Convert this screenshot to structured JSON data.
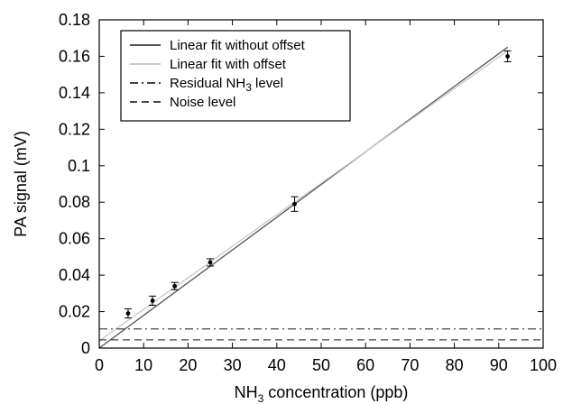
{
  "chart_data": {
    "type": "scatter",
    "xlabel": {
      "prefix": "NH",
      "sub": "3",
      "suffix": " concentration (ppb)"
    },
    "ylabel": "PA signal (mV)",
    "xlim": [
      0,
      100
    ],
    "ylim": [
      0,
      0.18
    ],
    "x_ticks": [
      0,
      10,
      20,
      30,
      40,
      50,
      60,
      70,
      80,
      90,
      100
    ],
    "y_ticks": [
      0,
      0.02,
      0.04,
      0.06,
      0.08,
      0.1,
      0.12,
      0.14,
      0.16,
      0.18
    ],
    "y_tick_labels": [
      "0",
      "0.02",
      "0.04",
      "0.06",
      "0.08",
      "0.1",
      "0.12",
      "0.14",
      "0.16",
      "0.18"
    ],
    "grid": false,
    "legend_position": "top-left",
    "points": {
      "x": [
        6.5,
        12,
        17,
        25,
        44,
        92
      ],
      "y": [
        0.019,
        0.026,
        0.034,
        0.047,
        0.079,
        0.16
      ],
      "yerr": [
        0.0025,
        0.0025,
        0.002,
        0.002,
        0.004,
        0.003
      ]
    },
    "series": [
      {
        "name": "Linear fit without offset",
        "kind": "line",
        "x": [
          0,
          92
        ],
        "y": [
          0,
          0.165
        ],
        "color": "#555555",
        "style": "solid"
      },
      {
        "name": "Linear fit with offset",
        "kind": "line",
        "x": [
          0,
          92
        ],
        "y": [
          0.004,
          0.163
        ],
        "color": "#c8c8c8",
        "style": "solid"
      },
      {
        "name": "Residual NH3 level",
        "kind": "hline",
        "y": 0.0105,
        "color": "#444444",
        "style": "dashdot",
        "legend": {
          "prefix": "Residual NH",
          "sub": "3",
          "suffix": " level"
        }
      },
      {
        "name": "Noise level",
        "kind": "hline",
        "y": 0.0045,
        "color": "#444444",
        "style": "dashed",
        "legend": {
          "prefix": "Noise level",
          "sub": "",
          "suffix": ""
        }
      }
    ]
  }
}
